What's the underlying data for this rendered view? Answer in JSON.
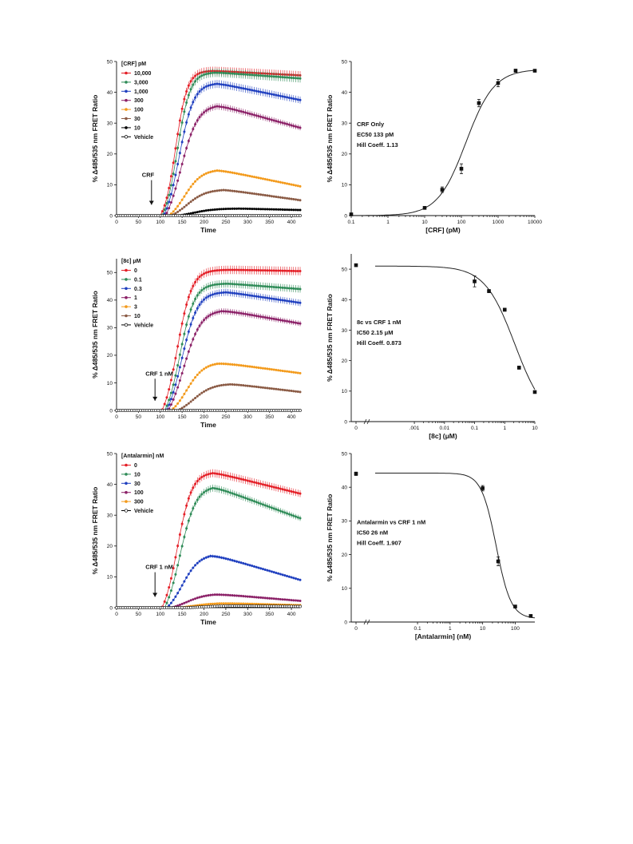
{
  "chart_data": [
    {
      "id": "A",
      "type": "line",
      "ylabel": "% Δ485/535 nm FRET Ratio",
      "xlabel": "Time",
      "xlim": [
        0,
        420
      ],
      "ylim": [
        0,
        50
      ],
      "xticks": [
        0,
        50,
        100,
        150,
        200,
        250,
        300,
        350,
        400
      ],
      "yticks": [
        0,
        10,
        20,
        30,
        40,
        50
      ],
      "legend_title": "[CRF] pM",
      "legend_position": "top-left",
      "annotation": "CRF",
      "arrow_x": 80,
      "series": [
        {
          "name": "10,000",
          "color": "#e41e26",
          "marker": "filled",
          "t_onset": 100,
          "k": 0.075,
          "peak": 47.0,
          "t_peak": 220,
          "end": 45.5
        },
        {
          "name": "3,000",
          "color": "#2e8b57",
          "marker": "filled",
          "t_onset": 104,
          "k": 0.068,
          "peak": 46.5,
          "t_peak": 225,
          "end": 44.5
        },
        {
          "name": "1,000",
          "color": "#1f3fbf",
          "marker": "filled",
          "t_onset": 108,
          "k": 0.06,
          "peak": 43.0,
          "t_peak": 230,
          "end": 37.5
        },
        {
          "name": "300",
          "color": "#8b2067",
          "marker": "filled",
          "t_onset": 112,
          "k": 0.052,
          "peak": 36.0,
          "t_peak": 230,
          "end": 28.5
        },
        {
          "name": "100",
          "color": "#f39a1b",
          "marker": "filled",
          "t_onset": 120,
          "k": 0.05,
          "peak": 15.0,
          "t_peak": 230,
          "end": 9.5
        },
        {
          "name": "30",
          "color": "#8a5a44",
          "marker": "filled",
          "t_onset": 125,
          "k": 0.045,
          "peak": 8.5,
          "t_peak": 245,
          "end": 5.0
        },
        {
          "name": "10",
          "color": "#000000",
          "marker": "filled",
          "t_onset": 140,
          "k": 0.04,
          "peak": 2.3,
          "t_peak": 280,
          "end": 1.8
        },
        {
          "name": "Vehicle",
          "color": "#000000",
          "marker": "open",
          "t_onset": 999,
          "k": 0.04,
          "peak": 0,
          "t_peak": 300,
          "end": 0
        }
      ]
    },
    {
      "id": "B",
      "type": "scatter",
      "ylabel": "% Δ485/535 nm FRET Ratio",
      "xlabel": "[CRF] (pM)",
      "xscale": "log",
      "xlim": [
        0.1,
        10000
      ],
      "ylim": [
        0,
        50
      ],
      "xticks": [
        0.1,
        1,
        10,
        100,
        1000,
        10000
      ],
      "xticklabels": [
        "0.1",
        "1",
        "10",
        "100",
        "1000",
        "10000"
      ],
      "yticks": [
        0,
        10,
        20,
        30,
        40,
        50
      ],
      "annotation_lines": [
        "CRF Only",
        "EC50  133 pM",
        "Hill Coeff.  1.13"
      ],
      "points": [
        {
          "x": 0.1,
          "y": 0.4,
          "err": 0.3
        },
        {
          "x": 10,
          "y": 2.5,
          "err": 0.4
        },
        {
          "x": 30,
          "y": 8.4,
          "err": 0.9
        },
        {
          "x": 100,
          "y": 15.2,
          "err": 1.6
        },
        {
          "x": 300,
          "y": 36.5,
          "err": 1.2
        },
        {
          "x": 1000,
          "y": 43.0,
          "err": 1.2
        },
        {
          "x": 3000,
          "y": 47.0,
          "err": 0.5
        },
        {
          "x": 10000,
          "y": 47.0,
          "err": 0.4
        }
      ],
      "fit": {
        "bottom": 0,
        "top": 47.5,
        "ec50": 133,
        "hill": 1.13
      }
    },
    {
      "id": "C",
      "type": "line",
      "ylabel": "% Δ485/535 nm FRET Ratio",
      "xlabel": "Time",
      "xlim": [
        0,
        420
      ],
      "ylim": [
        0,
        55
      ],
      "xticks": [
        0,
        50,
        100,
        150,
        200,
        250,
        300,
        350,
        400
      ],
      "yticks": [
        0,
        10,
        20,
        30,
        40,
        50
      ],
      "legend_title": "[8c] μM",
      "legend_position": "top-left",
      "annotation": "CRF 1 nM",
      "arrow_x": 88,
      "series": [
        {
          "name": "0",
          "color": "#e41e26",
          "marker": "filled",
          "t_onset": 104,
          "k": 0.06,
          "peak": 51.0,
          "t_peak": 260,
          "end": 50.5
        },
        {
          "name": "0.1",
          "color": "#2e8b57",
          "marker": "filled",
          "t_onset": 110,
          "k": 0.06,
          "peak": 46.0,
          "t_peak": 255,
          "end": 44.0
        },
        {
          "name": "0.3",
          "color": "#1f3fbf",
          "marker": "filled",
          "t_onset": 114,
          "k": 0.055,
          "peak": 43.0,
          "t_peak": 250,
          "end": 39.0
        },
        {
          "name": "1",
          "color": "#8b2067",
          "marker": "filled",
          "t_onset": 118,
          "k": 0.05,
          "peak": 36.5,
          "t_peak": 240,
          "end": 31.5
        },
        {
          "name": "3",
          "color": "#f39a1b",
          "marker": "filled",
          "t_onset": 125,
          "k": 0.05,
          "peak": 17.5,
          "t_peak": 230,
          "end": 13.5
        },
        {
          "name": "10",
          "color": "#8a5a44",
          "marker": "filled",
          "t_onset": 140,
          "k": 0.045,
          "peak": 9.7,
          "t_peak": 260,
          "end": 6.7
        },
        {
          "name": "Vehicle",
          "color": "#000000",
          "marker": "open",
          "t_onset": 999,
          "k": 0.04,
          "peak": 0.7,
          "t_peak": 300,
          "end": 0.5
        }
      ]
    },
    {
      "id": "D",
      "type": "scatter",
      "ylabel": "% Δ485/535 nm FRET Ratio",
      "xlabel": "[8c] (μM)",
      "xscale": "log",
      "xlim": [
        5e-05,
        10
      ],
      "ylim": [
        0,
        55
      ],
      "xticks": [
        0.001,
        0.01,
        0.1,
        1,
        10
      ],
      "xticklabels": [
        ".001",
        "0.01",
        "0.1",
        "1",
        "10"
      ],
      "zero_tick": {
        "label": "0",
        "value": 0
      },
      "yticks": [
        0,
        10,
        20,
        30,
        40,
        50
      ],
      "annotation_lines": [
        "8c vs CRF 1 nM",
        "IC50 2.15 μM",
        "Hill Coeff.  0.873"
      ],
      "points": [
        {
          "x": 0,
          "y": 51.3,
          "err": 0.4
        },
        {
          "x": 0.1,
          "y": 46.0,
          "err": 1.8
        },
        {
          "x": 0.3,
          "y": 42.8,
          "err": 0.5
        },
        {
          "x": 1,
          "y": 36.7,
          "err": 0.5
        },
        {
          "x": 3,
          "y": 17.7,
          "err": 0.5
        },
        {
          "x": 10,
          "y": 9.7,
          "err": 0.4
        }
      ],
      "fit": {
        "top": 51.0,
        "bottom": 0,
        "ic50": 2.15,
        "hill": 0.873,
        "x_start": 5e-05
      }
    },
    {
      "id": "E",
      "type": "line",
      "ylabel": "% Δ485/535 nm FRET Ratio",
      "xlabel": "Time",
      "xlim": [
        0,
        420
      ],
      "ylim": [
        0,
        50
      ],
      "xticks": [
        0,
        50,
        100,
        150,
        200,
        250,
        300,
        350,
        400
      ],
      "yticks": [
        0,
        10,
        20,
        30,
        40,
        50
      ],
      "legend_title": "[Antalarmin] nM",
      "legend_position": "top-left",
      "annotation": "CRF 1 nM",
      "arrow_x": 88,
      "series": [
        {
          "name": "0",
          "color": "#e41e26",
          "marker": "filled",
          "t_onset": 104,
          "k": 0.06,
          "peak": 44.0,
          "t_peak": 220,
          "end": 37.0
        },
        {
          "name": "10",
          "color": "#2e8b57",
          "marker": "filled",
          "t_onset": 110,
          "k": 0.055,
          "peak": 39.5,
          "t_peak": 220,
          "end": 29.0
        },
        {
          "name": "30",
          "color": "#1f3fbf",
          "marker": "filled",
          "t_onset": 115,
          "k": 0.05,
          "peak": 17.5,
          "t_peak": 215,
          "end": 9.0
        },
        {
          "name": "100",
          "color": "#8b2067",
          "marker": "filled",
          "t_onset": 125,
          "k": 0.045,
          "peak": 4.5,
          "t_peak": 225,
          "end": 2.2
        },
        {
          "name": "300",
          "color": "#f39a1b",
          "marker": "filled",
          "t_onset": 140,
          "k": 0.04,
          "peak": 1.5,
          "t_peak": 240,
          "end": 0.8
        },
        {
          "name": "Vehicle",
          "color": "#000000",
          "marker": "open",
          "t_onset": 160,
          "k": 0.04,
          "peak": 0.6,
          "t_peak": 260,
          "end": 0.4
        }
      ]
    },
    {
      "id": "F",
      "type": "scatter",
      "ylabel": "% Δ485/535 nm FRET Ratio",
      "xlabel": "[Antalarmin] (nM)",
      "xscale": "log",
      "xlim": [
        0.005,
        400
      ],
      "ylim": [
        0,
        50
      ],
      "xticks": [
        0.1,
        1,
        10,
        100
      ],
      "xticklabels": [
        "0.1",
        "1",
        "10",
        "100"
      ],
      "zero_tick": {
        "label": "0",
        "value": 0
      },
      "yticks": [
        0,
        10,
        20,
        30,
        40,
        50
      ],
      "annotation_lines": [
        "Antalarmin vs CRF 1 nM",
        "IC50 26 nM",
        "Hill Coeff.  1.907"
      ],
      "points": [
        {
          "x": 0,
          "y": 44.0,
          "err": 0.5
        },
        {
          "x": 10,
          "y": 39.7,
          "err": 0.8
        },
        {
          "x": 30,
          "y": 18.0,
          "err": 1.3
        },
        {
          "x": 100,
          "y": 4.6,
          "err": 0.4
        },
        {
          "x": 300,
          "y": 1.8,
          "err": 0.3
        }
      ],
      "fit": {
        "top": 44.2,
        "bottom": 1.0,
        "ic50": 26,
        "hill": 1.907,
        "x_start": 0.005
      }
    }
  ]
}
